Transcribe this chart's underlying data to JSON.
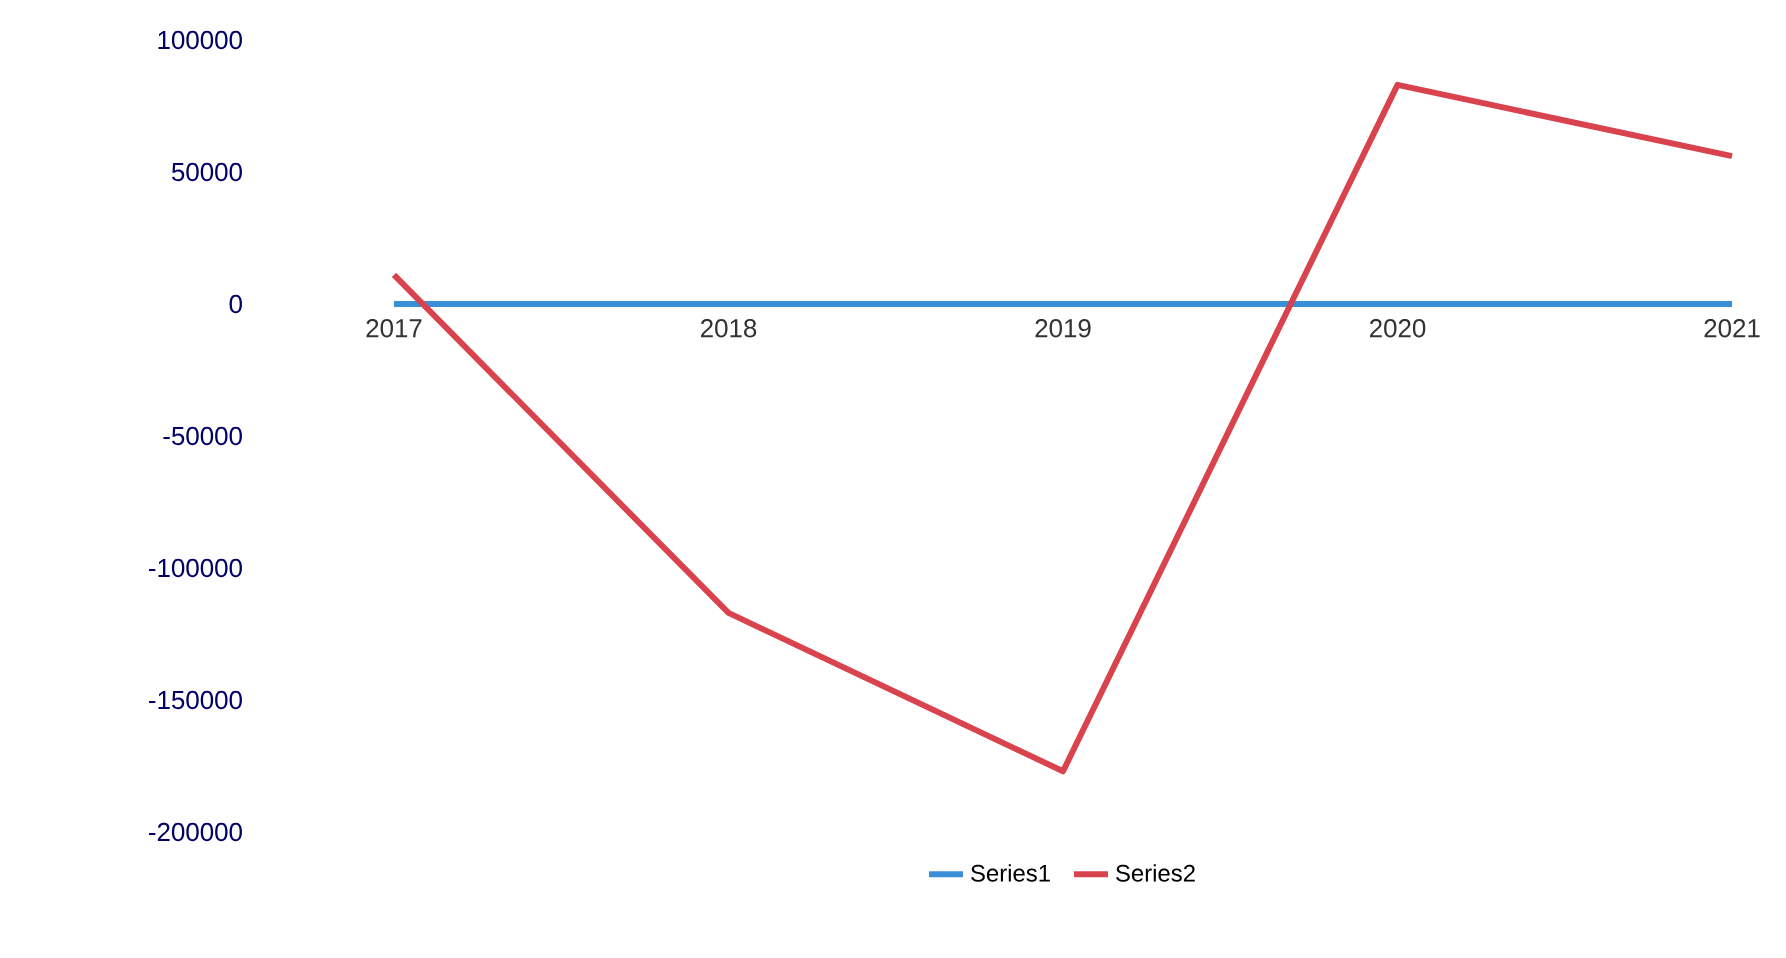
{
  "chart_data": {
    "type": "line",
    "categories": [
      "2017",
      "2018",
      "2019",
      "2020",
      "2021"
    ],
    "series": [
      {
        "name": "Series1",
        "color": "#3a8fd9",
        "values": [
          0,
          0,
          0,
          0,
          0
        ]
      },
      {
        "name": "Series2",
        "color": "#d8434e",
        "values": [
          11000,
          -117000,
          -177000,
          83000,
          56000
        ]
      }
    ],
    "ylim": [
      -200000,
      100000
    ],
    "yticks": [
      -200000,
      -150000,
      -100000,
      -50000,
      0,
      50000,
      100000
    ],
    "legend": "bottom",
    "grid": false,
    "marker": "none",
    "line_style": "solid"
  }
}
